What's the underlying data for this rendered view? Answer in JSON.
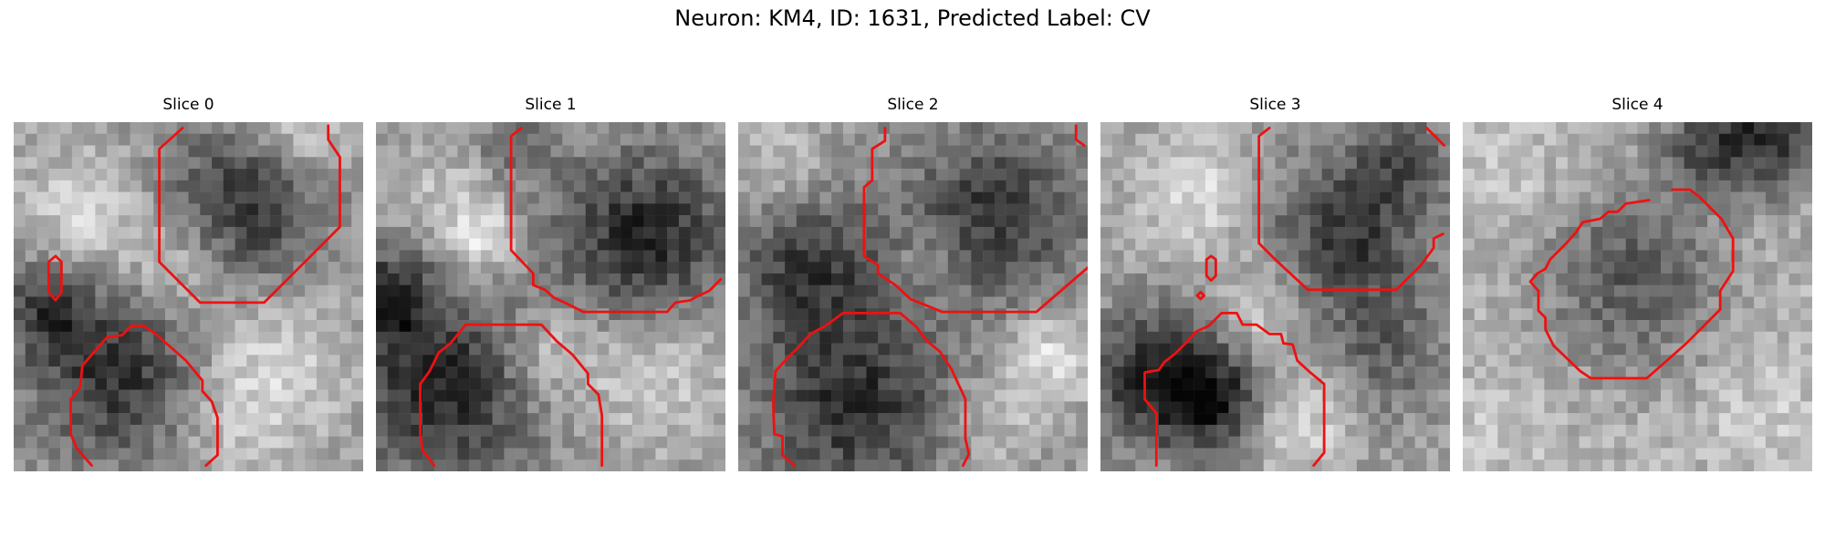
{
  "figure": {
    "title": "Neuron: KM4, ID: 1631, Predicted Label: CV"
  },
  "colors": {
    "contour": "#ee1111",
    "background": "#ffffff"
  },
  "panels": [
    {
      "title": "Slice 0"
    },
    {
      "title": "Slice 1"
    },
    {
      "title": "Slice 2"
    },
    {
      "title": "Slice 3"
    },
    {
      "title": "Slice 4"
    }
  ]
}
